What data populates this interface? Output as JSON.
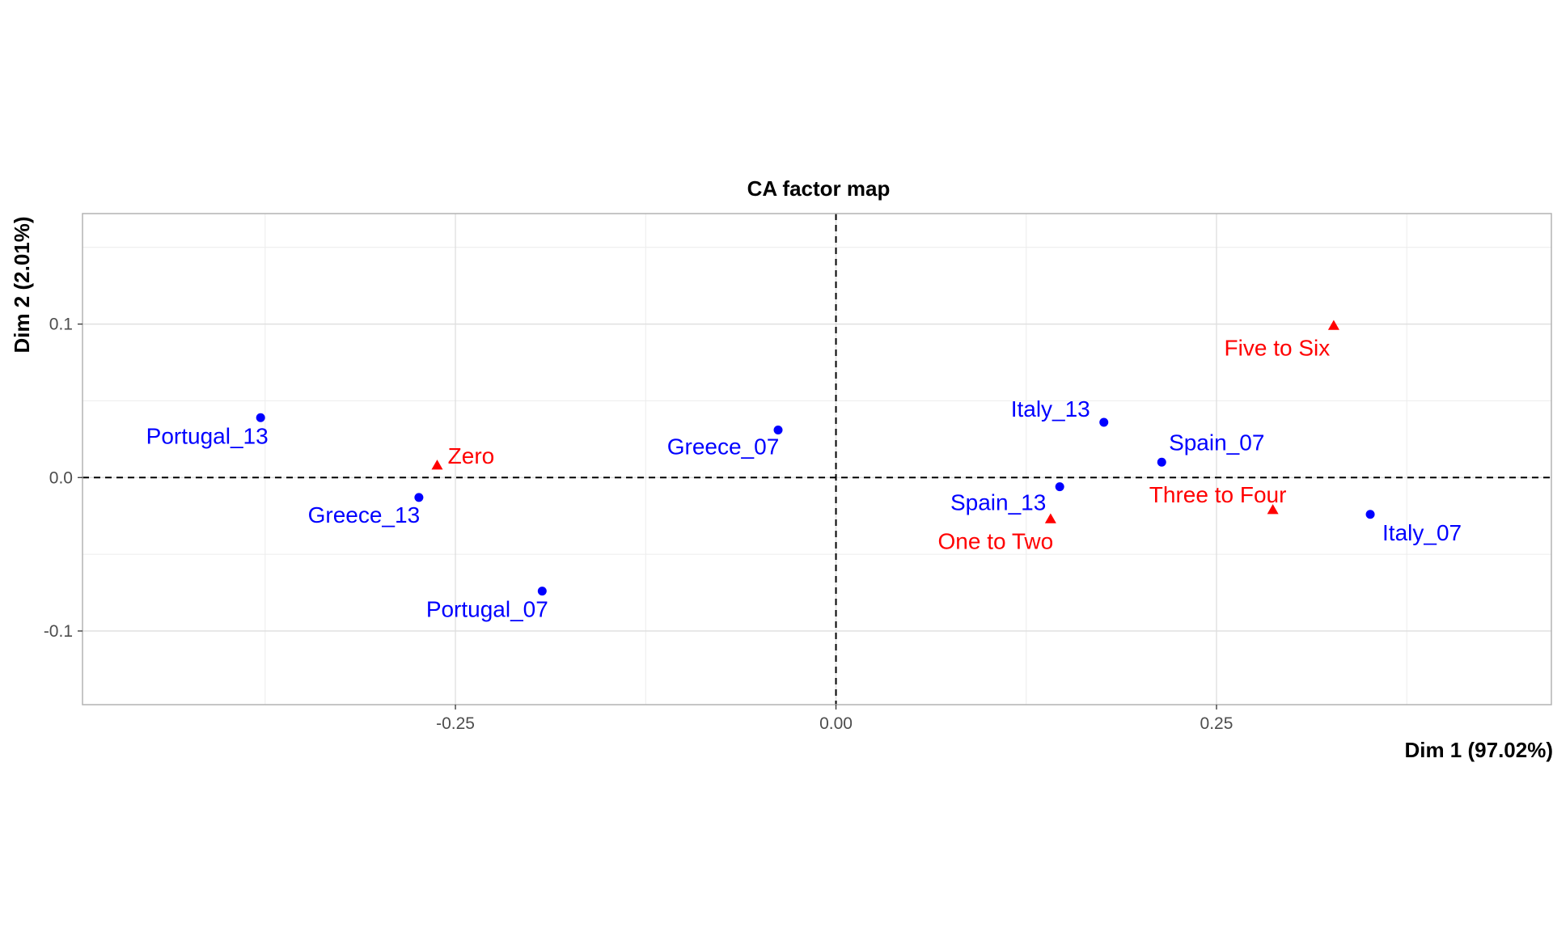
{
  "chart_data": {
    "type": "scatter",
    "title": "CA factor map",
    "xlabel": "Dim 1 (97.02%)",
    "ylabel": "Dim 2 (2.01%)",
    "xlim": [
      -0.495,
      0.47
    ],
    "ylim": [
      -0.148,
      0.172
    ],
    "x_ticks": [
      {
        "value": -0.25,
        "label": "-0.25"
      },
      {
        "value": 0.0,
        "label": "0.00"
      },
      {
        "value": 0.25,
        "label": "0.25"
      }
    ],
    "y_ticks": [
      {
        "value": -0.1,
        "label": "-0.1"
      },
      {
        "value": 0.0,
        "label": "0.0"
      },
      {
        "value": 0.1,
        "label": "0.1"
      }
    ],
    "grid": true,
    "reference_lines": {
      "x": 0,
      "y": 0,
      "style": "dashed"
    },
    "series": [
      {
        "color": "#0000ff",
        "marker": "circle",
        "points": [
          {
            "label": "Portugal_13",
            "x": -0.378,
            "y": 0.039
          },
          {
            "label": "Greece_13",
            "x": -0.274,
            "y": -0.013
          },
          {
            "label": "Portugal_07",
            "x": -0.193,
            "y": -0.074
          },
          {
            "label": "Greece_07",
            "x": -0.038,
            "y": 0.031
          },
          {
            "label": "Spain_13",
            "x": 0.147,
            "y": -0.006
          },
          {
            "label": "Italy_13",
            "x": 0.176,
            "y": 0.036
          },
          {
            "label": "Spain_07",
            "x": 0.214,
            "y": 0.01
          },
          {
            "label": "Italy_07",
            "x": 0.351,
            "y": -0.024
          }
        ]
      },
      {
        "color": "#ff0000",
        "marker": "triangle",
        "points": [
          {
            "label": "Zero",
            "x": -0.262,
            "y": 0.008
          },
          {
            "label": "One to Two",
            "x": 0.141,
            "y": -0.027
          },
          {
            "label": "Three to Four",
            "x": 0.287,
            "y": -0.021
          },
          {
            "label": "Five to Six",
            "x": 0.327,
            "y": 0.099
          }
        ]
      }
    ]
  }
}
